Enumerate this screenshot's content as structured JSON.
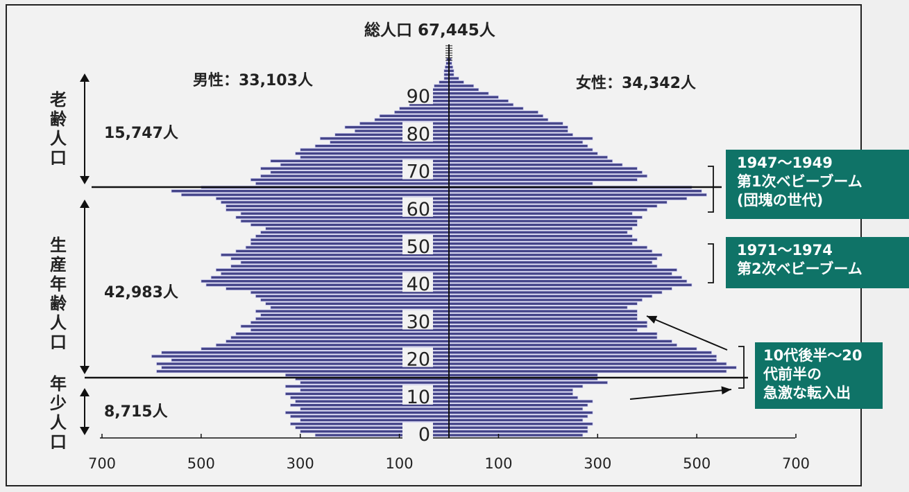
{
  "chart_data": {
    "type": "bar",
    "title": "総人口 67,445人",
    "male_label": "男性：33,103人",
    "female_label": "女性：34,342人",
    "age_ticks": [
      "0",
      "10",
      "20",
      "30",
      "40",
      "50",
      "60",
      "70",
      "80",
      "90"
    ],
    "x_ticks_left": [
      "700",
      "500",
      "300",
      "100"
    ],
    "x_ticks_right": [
      "100",
      "300",
      "500",
      "700"
    ],
    "xlim": [
      0,
      700
    ],
    "ages": [
      0,
      1,
      2,
      3,
      4,
      5,
      6,
      7,
      8,
      9,
      10,
      11,
      12,
      13,
      14,
      15,
      16,
      17,
      18,
      19,
      20,
      21,
      22,
      23,
      24,
      25,
      26,
      27,
      28,
      29,
      30,
      31,
      32,
      33,
      34,
      35,
      36,
      37,
      38,
      39,
      40,
      41,
      42,
      43,
      44,
      45,
      46,
      47,
      48,
      49,
      50,
      51,
      52,
      53,
      54,
      55,
      56,
      57,
      58,
      59,
      60,
      61,
      62,
      63,
      64,
      65,
      66,
      67,
      68,
      69,
      70,
      71,
      72,
      73,
      74,
      75,
      76,
      77,
      78,
      79,
      80,
      81,
      82,
      83,
      84,
      85,
      86,
      87,
      88,
      89,
      90,
      91,
      92,
      93,
      94,
      95,
      96,
      97,
      98,
      99,
      100
    ],
    "series": [
      {
        "name": "男性",
        "values": [
          270,
          300,
          310,
          320,
          300,
          320,
          330,
          300,
          320,
          310,
          320,
          330,
          300,
          330,
          300,
          310,
          330,
          590,
          580,
          590,
          560,
          600,
          580,
          500,
          470,
          450,
          440,
          430,
          400,
          420,
          400,
          390,
          380,
          390,
          360,
          370,
          380,
          390,
          400,
          450,
          490,
          500,
          480,
          460,
          470,
          440,
          420,
          440,
          460,
          430,
          410,
          400,
          400,
          390,
          380,
          370,
          400,
          420,
          430,
          420,
          450,
          450,
          460,
          470,
          540,
          560,
          500,
          390,
          400,
          380,
          360,
          380,
          340,
          360,
          300,
          310,
          300,
          270,
          240,
          260,
          230,
          190,
          210,
          180,
          150,
          140,
          110,
          100,
          80,
          70,
          50,
          40,
          40,
          30,
          20,
          10,
          10,
          10,
          8,
          6,
          5
        ]
      },
      {
        "name": "女性",
        "values": [
          270,
          280,
          280,
          290,
          270,
          280,
          290,
          270,
          280,
          290,
          260,
          250,
          250,
          270,
          320,
          300,
          300,
          560,
          580,
          560,
          540,
          540,
          530,
          500,
          460,
          450,
          420,
          420,
          380,
          400,
          400,
          380,
          380,
          380,
          360,
          380,
          390,
          410,
          430,
          450,
          490,
          480,
          470,
          450,
          460,
          420,
          410,
          420,
          430,
          410,
          400,
          370,
          380,
          370,
          360,
          370,
          380,
          380,
          390,
          370,
          400,
          420,
          440,
          480,
          520,
          510,
          490,
          290,
          380,
          400,
          390,
          380,
          350,
          330,
          320,
          300,
          290,
          280,
          270,
          290,
          250,
          240,
          240,
          230,
          200,
          190,
          180,
          150,
          130,
          120,
          100,
          80,
          60,
          50,
          30,
          20,
          10,
          10,
          8,
          6,
          5
        ]
      }
    ],
    "annotations": {
      "left_groups": [
        {
          "label": "老齢人口",
          "count": "15,747人"
        },
        {
          "label": "生産年齢人口",
          "count": "42,983人"
        },
        {
          "label": "年少人口",
          "count": "8,715人"
        }
      ],
      "callouts": [
        {
          "text": "1947～1949\n第1次ベビーブーム\n(団塊の世代)"
        },
        {
          "text": "1971～1974\n第2次ベビーブーム"
        },
        {
          "text": "10代後半～20\n代前半の\n急激な転入出"
        }
      ]
    },
    "colors": {
      "bar_fill": "#444488",
      "bar_edge": "#c8c8f0",
      "callout": "#0f7367"
    }
  }
}
